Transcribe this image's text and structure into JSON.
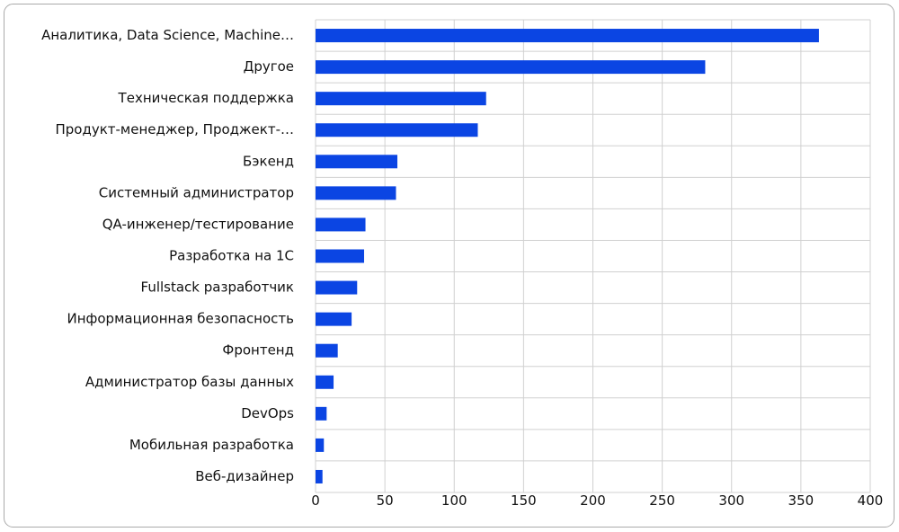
{
  "chart_data": {
    "type": "barh",
    "categories": [
      "Аналитика, Data Science, Machine…",
      "Другое",
      "Техническая поддержка",
      "Продукт-менеджер, Проджект-…",
      "Бэкенд",
      "Системный администратор",
      "QA-инженер/тестирование",
      "Разработка на 1С",
      "Fullstack разработчик",
      "Информационная безопасность",
      "Фронтенд",
      "Администратор базы данных",
      "DevOps",
      "Мобильная разработка",
      "Веб-дизайнер"
    ],
    "values": [
      363,
      281,
      123,
      117,
      59,
      58,
      36,
      35,
      30,
      26,
      16,
      13,
      8,
      6,
      5
    ],
    "color": "#0b45e3",
    "xlim": [
      0,
      400
    ],
    "xticks": [
      0,
      50,
      100,
      150,
      200,
      250,
      300,
      350,
      400
    ],
    "grid": true
  }
}
